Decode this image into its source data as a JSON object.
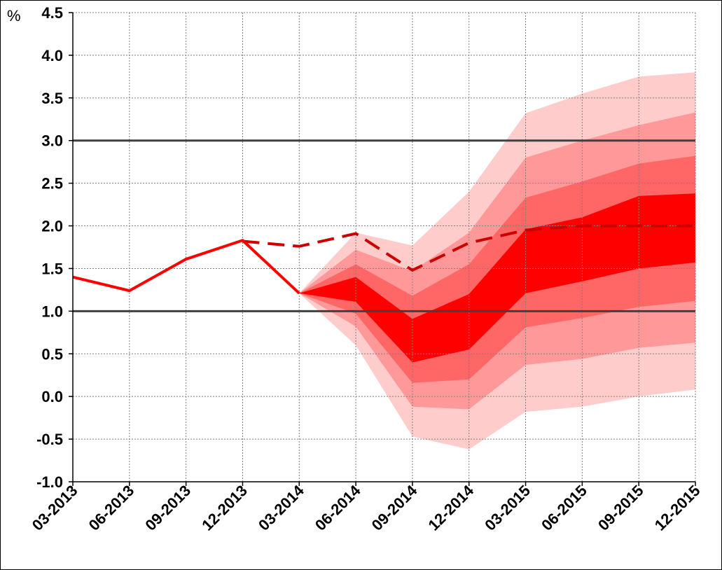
{
  "chart_data": {
    "type": "line",
    "title": "",
    "xlabel": "",
    "ylabel": "%",
    "categories": [
      "03-2013",
      "06-2013",
      "09-2013",
      "12-2013",
      "03-2014",
      "06-2014",
      "09-2014",
      "12-2014",
      "03-2015",
      "06-2015",
      "09-2015",
      "12-2015"
    ],
    "ylim": [
      -1.0,
      4.5
    ],
    "yticks": [
      -1.0,
      -0.5,
      0.0,
      0.5,
      1.0,
      1.5,
      2.0,
      2.5,
      3.0,
      3.5,
      4.0,
      4.5
    ],
    "grid": true,
    "tolerance_lines": [
      1.0,
      3.0
    ],
    "actual": {
      "x": [
        "03-2013",
        "06-2013",
        "09-2013",
        "12-2013",
        "03-2014"
      ],
      "values": [
        1.4,
        1.24,
        1.61,
        1.83,
        1.21
      ]
    },
    "previous_forecast": {
      "x": [
        "12-2013",
        "03-2014",
        "06-2014",
        "09-2014",
        "12-2014",
        "03-2015",
        "06-2015",
        "09-2015",
        "12-2015"
      ],
      "values": [
        1.82,
        1.76,
        1.91,
        1.48,
        1.8,
        1.95,
        2.0,
        2.0,
        2.0
      ]
    },
    "fan_bands": {
      "x": [
        "03-2014",
        "06-2014",
        "09-2014",
        "12-2014",
        "03-2015",
        "06-2015",
        "09-2015",
        "12-2015"
      ],
      "bands": [
        {
          "color": "#ffcccc",
          "upper": [
            1.21,
            1.92,
            1.77,
            2.4,
            3.32,
            3.55,
            3.75,
            3.8
          ],
          "lower": [
            1.21,
            0.6,
            -0.47,
            -0.62,
            -0.18,
            -0.12,
            0.0,
            0.08
          ]
        },
        {
          "color": "#ff9999",
          "upper": [
            1.21,
            1.72,
            1.47,
            1.92,
            2.8,
            3.0,
            3.18,
            3.33
          ],
          "lower": [
            1.21,
            0.82,
            -0.12,
            -0.15,
            0.37,
            0.44,
            0.57,
            0.63
          ]
        },
        {
          "color": "#ff6666",
          "upper": [
            1.21,
            1.55,
            1.18,
            1.55,
            2.33,
            2.52,
            2.73,
            2.82
          ],
          "lower": [
            1.21,
            0.97,
            0.16,
            0.2,
            0.81,
            0.92,
            1.05,
            1.12
          ]
        },
        {
          "color": "#ff0000",
          "upper": [
            1.21,
            1.4,
            0.91,
            1.2,
            1.96,
            2.1,
            2.35,
            2.38
          ],
          "lower": [
            1.21,
            1.11,
            0.4,
            0.55,
            1.21,
            1.35,
            1.5,
            1.57
          ]
        }
      ]
    },
    "colors": {
      "actual": "#ff0000",
      "forecast": "#cc0000",
      "tolerance": "#404040",
      "grid": "#808080"
    }
  }
}
